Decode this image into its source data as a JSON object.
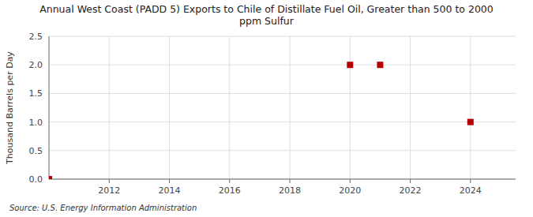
{
  "chart_data": {
    "type": "scatter",
    "title": "Annual West Coast (PADD 5) Exports to Chile of Distillate Fuel Oil, Greater than 500 to 2000\nppm Sulfur",
    "y_label": "Thousand Barrels per Day",
    "source": "Source: U.S. Energy Information Administration",
    "x": [
      2010,
      2020,
      2021,
      2024
    ],
    "values": [
      0.0,
      2.0,
      2.0,
      1.0
    ],
    "color": "#b30000",
    "marker": "square",
    "xlim": [
      2010.0,
      2025.5
    ],
    "ylim": [
      0.0,
      2.5
    ],
    "xticks": [
      2012,
      2014,
      2016,
      2018,
      2020,
      2022,
      2024
    ],
    "yticks": [
      {
        "value": 0.0,
        "label": "0.0"
      },
      0.5,
      {
        "value": 1.0,
        "label": "1.0"
      },
      1.5,
      {
        "value": 2.0,
        "label": "2.0"
      },
      2.5
    ],
    "grid": true
  }
}
